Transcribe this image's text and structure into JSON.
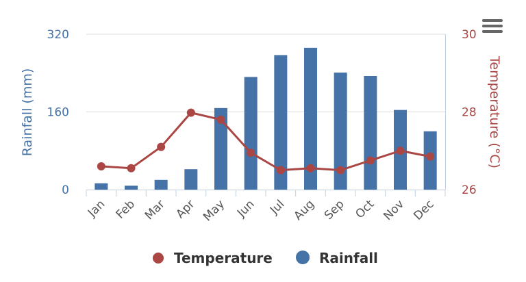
{
  "chart_data": {
    "type": "bar+line",
    "categories": [
      "Jan",
      "Feb",
      "Mar",
      "Apr",
      "May",
      "Jun",
      "Jul",
      "Aug",
      "Sep",
      "Oct",
      "Nov",
      "Dec"
    ],
    "series": [
      {
        "name": "Rainfall",
        "type": "bar",
        "axis": "left",
        "values": [
          13,
          8,
          20,
          42,
          168,
          232,
          277,
          292,
          241,
          234,
          164,
          120
        ],
        "color": "#4572A7"
      },
      {
        "name": "Temperature",
        "type": "line",
        "axis": "right",
        "values": [
          26.6,
          26.55,
          27.1,
          27.98,
          27.8,
          26.95,
          26.5,
          26.55,
          26.5,
          26.75,
          27.0,
          26.85
        ],
        "color": "#AA4643"
      }
    ],
    "y_left": {
      "label": "Rainfall (mm)",
      "ticks": [
        0,
        160,
        320
      ],
      "range": [
        0,
        320
      ],
      "color": "#4572A7"
    },
    "y_right": {
      "label": "Temperature (°C)",
      "ticks": [
        26,
        28,
        30
      ],
      "range": [
        26,
        30
      ],
      "color": "#AA4643"
    },
    "grid": true,
    "legend_position": "bottom"
  },
  "legend": {
    "items": [
      {
        "label": "Temperature",
        "color": "#AA4643",
        "icon": "circle-marker"
      },
      {
        "label": "Rainfall",
        "color": "#4572A7",
        "icon": "circle-marker"
      }
    ]
  },
  "toolbar": {
    "menu_icon": "hamburger-menu-icon"
  }
}
